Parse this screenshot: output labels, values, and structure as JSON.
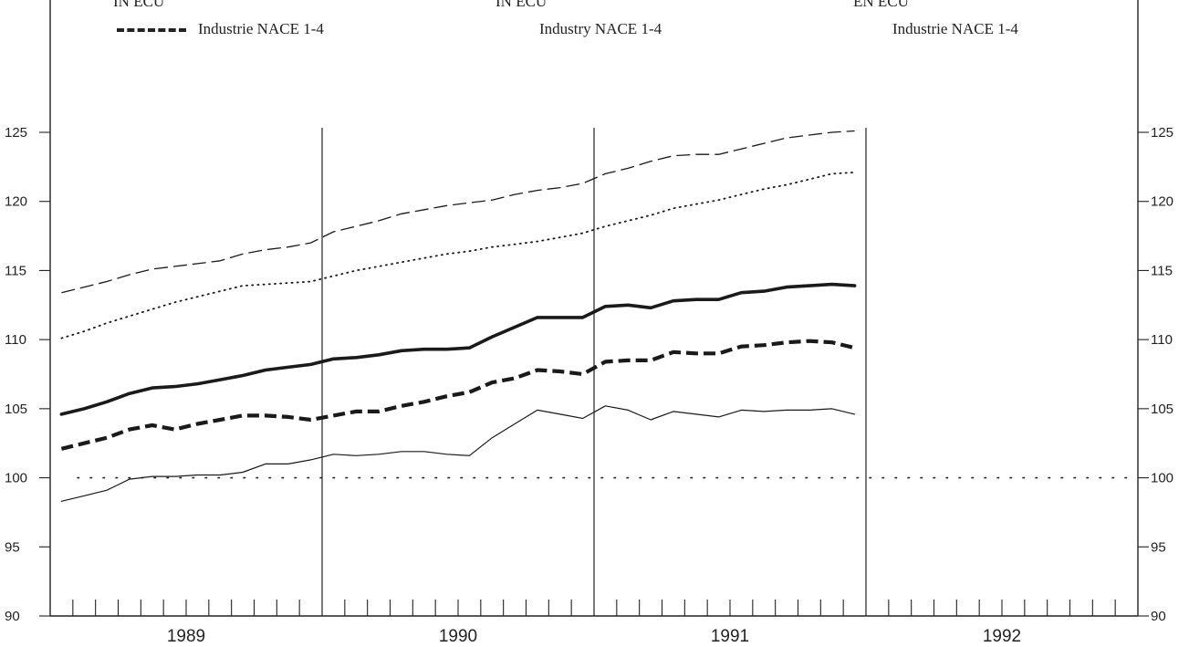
{
  "header": {
    "col1_unit": "IN ECU",
    "col2_unit": "IN ECU",
    "col3_unit": "EN ECU",
    "col1_legend": "Industrie NACE 1-4",
    "col2_legend": "Industry NACE 1-4",
    "col3_legend": "Industrie NACE 1-4"
  },
  "chart_data": {
    "type": "line",
    "x_label": "",
    "y_label": "",
    "ylim": [
      90,
      125
    ],
    "y_ticks": [
      90,
      95,
      100,
      105,
      110,
      115,
      120,
      125
    ],
    "years": [
      "1989",
      "1990",
      "1991",
      "1992"
    ],
    "months_per_year": 12,
    "reference_line": 100,
    "x": [
      1,
      2,
      3,
      4,
      5,
      6,
      7,
      8,
      9,
      10,
      11,
      12,
      13,
      14,
      15,
      16,
      17,
      18,
      19,
      20,
      21,
      22,
      23,
      24,
      25,
      26,
      27,
      28,
      29,
      30,
      31,
      32,
      33,
      34,
      35,
      36
    ],
    "series": [
      {
        "style": "thin-dashed",
        "values": [
          113.4,
          113.8,
          114.2,
          114.7,
          115.1,
          115.3,
          115.5,
          115.7,
          116.2,
          116.5,
          116.7,
          117.0,
          117.8,
          118.2,
          118.6,
          119.1,
          119.4,
          119.7,
          119.9,
          120.1,
          120.5,
          120.8,
          121.0,
          121.3,
          122.0,
          122.4,
          122.9,
          123.3,
          123.4,
          123.4,
          123.8,
          124.2,
          124.6,
          124.8,
          125.0,
          125.1
        ]
      },
      {
        "style": "dotted",
        "values": [
          110.1,
          110.6,
          111.2,
          111.7,
          112.2,
          112.7,
          113.1,
          113.5,
          113.9,
          114.0,
          114.1,
          114.2,
          114.6,
          115.0,
          115.3,
          115.6,
          115.9,
          116.2,
          116.4,
          116.7,
          116.9,
          117.1,
          117.4,
          117.7,
          118.2,
          118.6,
          119.0,
          119.5,
          119.8,
          120.1,
          120.5,
          120.9,
          121.2,
          121.6,
          122.0,
          122.1
        ]
      },
      {
        "style": "thick-solid",
        "values": [
          104.6,
          105.0,
          105.5,
          106.1,
          106.5,
          106.6,
          106.8,
          107.1,
          107.4,
          107.8,
          108.0,
          108.2,
          108.6,
          108.7,
          108.9,
          109.2,
          109.3,
          109.3,
          109.4,
          110.2,
          110.9,
          111.6,
          111.6,
          111.6,
          112.4,
          112.5,
          112.3,
          112.8,
          112.9,
          112.9,
          113.4,
          113.5,
          113.8,
          113.9,
          114.0,
          113.9
        ]
      },
      {
        "style": "thick-dashed",
        "values": [
          102.1,
          102.5,
          102.9,
          103.5,
          103.8,
          103.5,
          103.9,
          104.2,
          104.5,
          104.5,
          104.4,
          104.2,
          104.5,
          104.8,
          104.8,
          105.2,
          105.5,
          105.9,
          106.2,
          106.9,
          107.2,
          107.8,
          107.7,
          107.5,
          108.4,
          108.5,
          108.5,
          109.1,
          109.0,
          109.0,
          109.5,
          109.6,
          109.8,
          109.9,
          109.8,
          109.4
        ]
      },
      {
        "style": "thin-solid",
        "values": [
          98.3,
          98.7,
          99.1,
          99.9,
          100.1,
          100.1,
          100.2,
          100.2,
          100.4,
          101.0,
          101.0,
          101.3,
          101.7,
          101.6,
          101.7,
          101.9,
          101.9,
          101.7,
          101.6,
          102.9,
          103.9,
          104.9,
          104.6,
          104.3,
          105.2,
          104.9,
          104.2,
          104.8,
          104.6,
          104.4,
          104.9,
          104.8,
          104.9,
          104.9,
          105.0,
          104.6
        ]
      }
    ]
  }
}
